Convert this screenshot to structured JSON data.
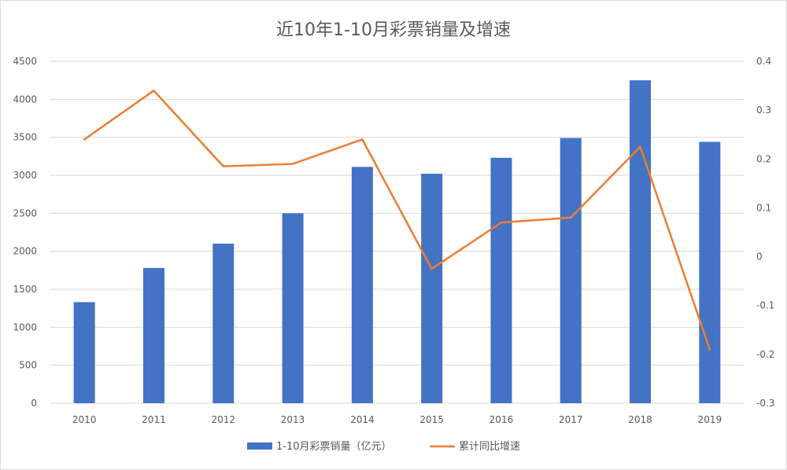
{
  "chart_data": {
    "type": "bar",
    "title": "近10年1-10月彩票销量及增速",
    "categories": [
      "2010",
      "2011",
      "2012",
      "2013",
      "2014",
      "2015",
      "2016",
      "2017",
      "2018",
      "2019"
    ],
    "series": [
      {
        "name": "1-10月彩票销量（亿元）",
        "type": "bar",
        "axis": "left",
        "color": "#4472c4",
        "values": [
          1330,
          1780,
          2100,
          2500,
          3110,
          3020,
          3230,
          3490,
          4250,
          3440
        ]
      },
      {
        "name": "累计同比增速",
        "type": "line",
        "axis": "right",
        "color": "#ed7d31",
        "values": [
          0.24,
          0.34,
          0.185,
          0.19,
          0.24,
          -0.025,
          0.07,
          0.08,
          0.225,
          -0.19
        ]
      }
    ],
    "y_left": {
      "min": 0,
      "max": 4500,
      "ticks": [
        "0",
        "500",
        "1000",
        "1500",
        "2000",
        "2500",
        "3000",
        "3500",
        "4000",
        "4500"
      ]
    },
    "y_right": {
      "min": -0.3,
      "max": 0.4,
      "ticks": [
        "-0.3",
        "-0.2",
        "-0.1",
        "0",
        "0.1",
        "0.2",
        "0.3",
        "0.4"
      ]
    },
    "grid": true,
    "legend": "bottom"
  }
}
